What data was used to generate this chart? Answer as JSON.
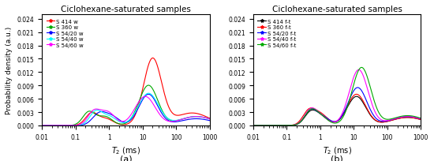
{
  "title": "Ciclohexane-saturated samples",
  "xlabel": "T$_2$ (ms)",
  "ylabel": "Probability density (a.u.)",
  "xlim": [
    0.01,
    1000
  ],
  "ylim": [
    0,
    0.025
  ],
  "yticks": [
    0.0,
    0.003,
    0.006,
    0.009,
    0.012,
    0.015,
    0.018,
    0.021,
    0.024
  ],
  "subplot_labels": [
    "(a)",
    "(b)"
  ],
  "panel_a": {
    "legend_labels": [
      "S 414 w",
      "S 360 w",
      "S 54/20 w",
      "S 54/40 w",
      "S 54/60 w"
    ],
    "colors": [
      "red",
      "#00aa00",
      "blue",
      "cyan",
      "magenta"
    ],
    "linestyles": [
      "-",
      "-",
      "-",
      "-",
      "-"
    ]
  },
  "panel_b": {
    "legend_labels": [
      "S 414 f-t",
      "S 360 f-t",
      "S 54/20 f-t",
      "S 54/40 f-t",
      "S 54/60 f-t"
    ],
    "colors": [
      "black",
      "red",
      "blue",
      "magenta",
      "#00aa00"
    ],
    "linestyles": [
      "-",
      "-",
      "-",
      "-",
      "-"
    ]
  }
}
